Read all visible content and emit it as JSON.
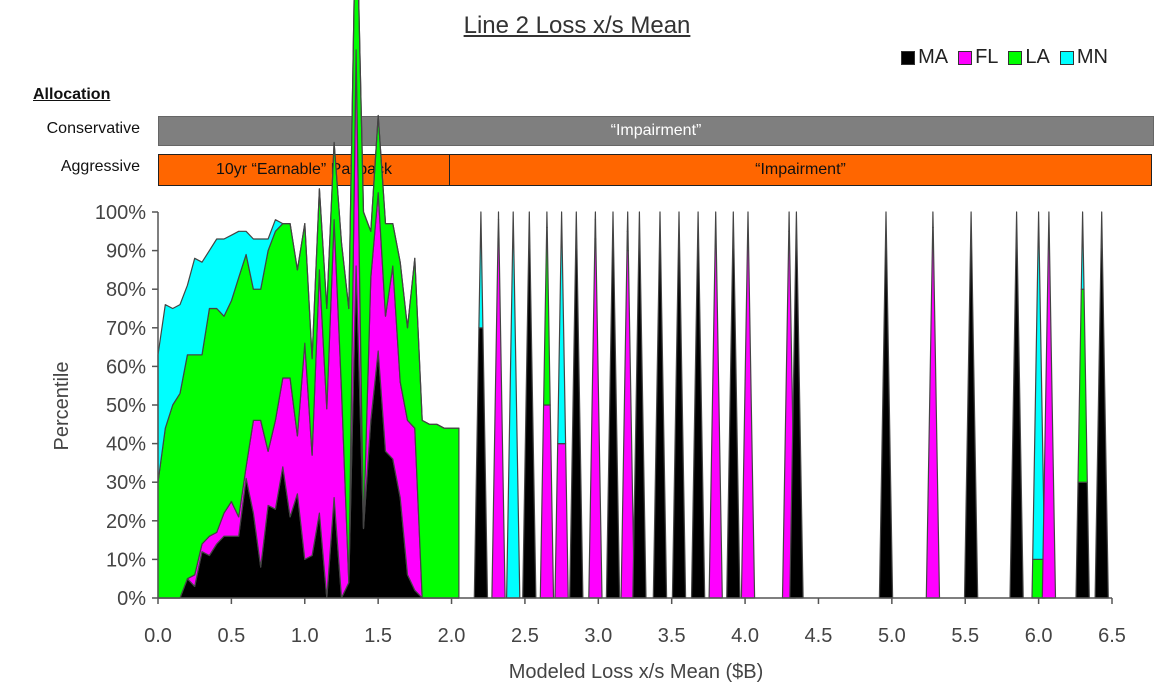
{
  "title": "Line 2 Loss x/s Mean",
  "legend": [
    {
      "label": "MA",
      "color": "#000000"
    },
    {
      "label": "FL",
      "color": "#ff00ff"
    },
    {
      "label": "LA",
      "color": "#00ff00"
    },
    {
      "label": "MN",
      "color": "#00ffff"
    }
  ],
  "allocation": {
    "heading": "Allocation",
    "conservative": {
      "label": "Conservative",
      "segments": [
        {
          "text": "“Impairment”",
          "from": 0.0,
          "to": 6.85
        }
      ]
    },
    "aggressive": {
      "label": "Aggressive",
      "segments": [
        {
          "text": "10yr “Earnable” Payback",
          "from": 0.0,
          "to": 2.0
        },
        {
          "text": "“Impairment”",
          "from": 2.0,
          "to": 6.85
        }
      ]
    }
  },
  "chart_data": {
    "type": "area",
    "stacked": true,
    "title": "Line 2 Loss x/s Mean",
    "xlabel": "Modeled Loss x/s Mean ($B)",
    "ylabel": "Percentile",
    "xlim": [
      0,
      6.5
    ],
    "ylim": [
      0,
      100
    ],
    "x_ticks": [
      "0.0",
      "0.5",
      "1.0",
      "1.5",
      "2.0",
      "2.5",
      "3.0",
      "3.5",
      "4.0",
      "4.5",
      "5.0",
      "5.5",
      "6.0",
      "6.5"
    ],
    "y_ticks": [
      "0%",
      "10%",
      "20%",
      "30%",
      "40%",
      "50%",
      "60%",
      "70%",
      "80%",
      "90%",
      "100%"
    ],
    "grid": false,
    "legend_position": "top-right",
    "series_order": [
      "MA",
      "FL",
      "LA",
      "MN"
    ],
    "continuous": {
      "x": [
        0.0,
        0.05,
        0.1,
        0.15,
        0.2,
        0.25,
        0.3,
        0.35,
        0.4,
        0.45,
        0.5,
        0.55,
        0.6,
        0.65,
        0.7,
        0.75,
        0.8,
        0.85,
        0.9,
        0.95,
        1.0,
        1.05,
        1.1,
        1.15,
        1.2,
        1.25,
        1.3,
        1.35,
        1.4,
        1.45,
        1.5,
        1.55,
        1.6,
        1.65,
        1.7,
        1.75,
        1.8,
        1.85,
        1.9,
        1.95,
        2.0,
        2.05
      ],
      "MA": [
        0,
        0,
        0,
        0,
        5,
        3,
        12,
        11,
        14,
        16,
        16,
        16,
        31,
        22,
        8,
        24,
        23,
        34,
        21,
        27,
        10,
        11,
        22,
        0,
        26,
        0,
        4,
        86,
        18,
        46,
        64,
        38,
        36,
        26,
        6,
        2,
        0,
        0,
        0,
        0,
        0,
        0
      ],
      "FL": [
        0,
        0,
        0,
        0,
        0,
        3,
        2,
        5,
        3,
        6,
        9,
        5,
        3,
        24,
        38,
        14,
        23,
        23,
        36,
        15,
        56,
        26,
        63,
        49,
        72,
        54,
        0,
        56,
        0,
        37,
        41,
        35,
        50,
        30,
        40,
        42,
        0,
        0,
        0,
        0,
        0,
        0
      ],
      "LA": [
        30,
        44,
        50,
        53,
        58,
        57,
        49,
        59,
        58,
        51,
        52,
        62,
        55,
        34,
        34,
        52,
        49,
        40,
        40,
        43,
        31,
        25,
        21,
        26,
        20,
        38,
        71,
        43,
        82,
        12,
        20,
        24,
        11,
        31,
        24,
        44,
        46,
        45,
        45,
        44,
        44,
        44
      ],
      "MN": [
        33,
        32,
        25,
        23,
        18,
        25,
        24,
        15,
        18,
        20,
        17,
        12,
        6,
        13,
        13,
        3,
        3,
        0,
        0,
        0,
        0,
        0,
        0,
        0,
        0,
        0,
        0,
        0,
        0,
        0,
        0,
        0,
        0,
        0,
        0,
        0,
        0,
        0,
        0,
        0,
        0,
        0
      ]
    },
    "spikes": [
      {
        "x": 2.2,
        "MA": 70,
        "FL": 0,
        "LA": 0,
        "MN": 30
      },
      {
        "x": 2.32,
        "MA": 0,
        "FL": 93,
        "LA": 5,
        "MN": 2
      },
      {
        "x": 2.42,
        "MA": 0,
        "FL": 0,
        "LA": 0,
        "MN": 100
      },
      {
        "x": 2.53,
        "MA": 100,
        "FL": 0,
        "LA": 0,
        "MN": 0
      },
      {
        "x": 2.65,
        "MA": 0,
        "FL": 50,
        "LA": 46,
        "MN": 4
      },
      {
        "x": 2.75,
        "MA": 0,
        "FL": 40,
        "LA": 0,
        "MN": 60
      },
      {
        "x": 2.85,
        "MA": 100,
        "FL": 0,
        "LA": 0,
        "MN": 0
      },
      {
        "x": 2.98,
        "MA": 0,
        "FL": 93,
        "LA": 5,
        "MN": 2
      },
      {
        "x": 3.1,
        "MA": 100,
        "FL": 0,
        "LA": 0,
        "MN": 0
      },
      {
        "x": 3.2,
        "MA": 0,
        "FL": 90,
        "LA": 5,
        "MN": 5
      },
      {
        "x": 3.28,
        "MA": 100,
        "FL": 0,
        "LA": 0,
        "MN": 0
      },
      {
        "x": 3.42,
        "MA": 100,
        "FL": 0,
        "LA": 0,
        "MN": 0
      },
      {
        "x": 3.55,
        "MA": 100,
        "FL": 0,
        "LA": 0,
        "MN": 0
      },
      {
        "x": 3.68,
        "MA": 100,
        "FL": 0,
        "LA": 0,
        "MN": 0
      },
      {
        "x": 3.8,
        "MA": 0,
        "FL": 100,
        "LA": 0,
        "MN": 0
      },
      {
        "x": 3.92,
        "MA": 100,
        "FL": 0,
        "LA": 0,
        "MN": 0
      },
      {
        "x": 4.02,
        "MA": 0,
        "FL": 100,
        "LA": 0,
        "MN": 0
      },
      {
        "x": 4.3,
        "MA": 0,
        "FL": 95,
        "LA": 5,
        "MN": 0
      },
      {
        "x": 4.35,
        "MA": 100,
        "FL": 0,
        "LA": 0,
        "MN": 0
      },
      {
        "x": 4.96,
        "MA": 100,
        "FL": 0,
        "LA": 0,
        "MN": 0
      },
      {
        "x": 5.28,
        "MA": 0,
        "FL": 96,
        "LA": 4,
        "MN": 0
      },
      {
        "x": 5.54,
        "MA": 100,
        "FL": 0,
        "LA": 0,
        "MN": 0
      },
      {
        "x": 5.85,
        "MA": 100,
        "FL": 0,
        "LA": 0,
        "MN": 0
      },
      {
        "x": 6.0,
        "MA": 0,
        "FL": 0,
        "LA": 10,
        "MN": 90
      },
      {
        "x": 6.07,
        "MA": 0,
        "FL": 100,
        "LA": 0,
        "MN": 0
      },
      {
        "x": 6.3,
        "MA": 30,
        "FL": 0,
        "LA": 50,
        "MN": 20
      },
      {
        "x": 6.43,
        "MA": 100,
        "FL": 0,
        "LA": 0,
        "MN": 0
      }
    ]
  }
}
